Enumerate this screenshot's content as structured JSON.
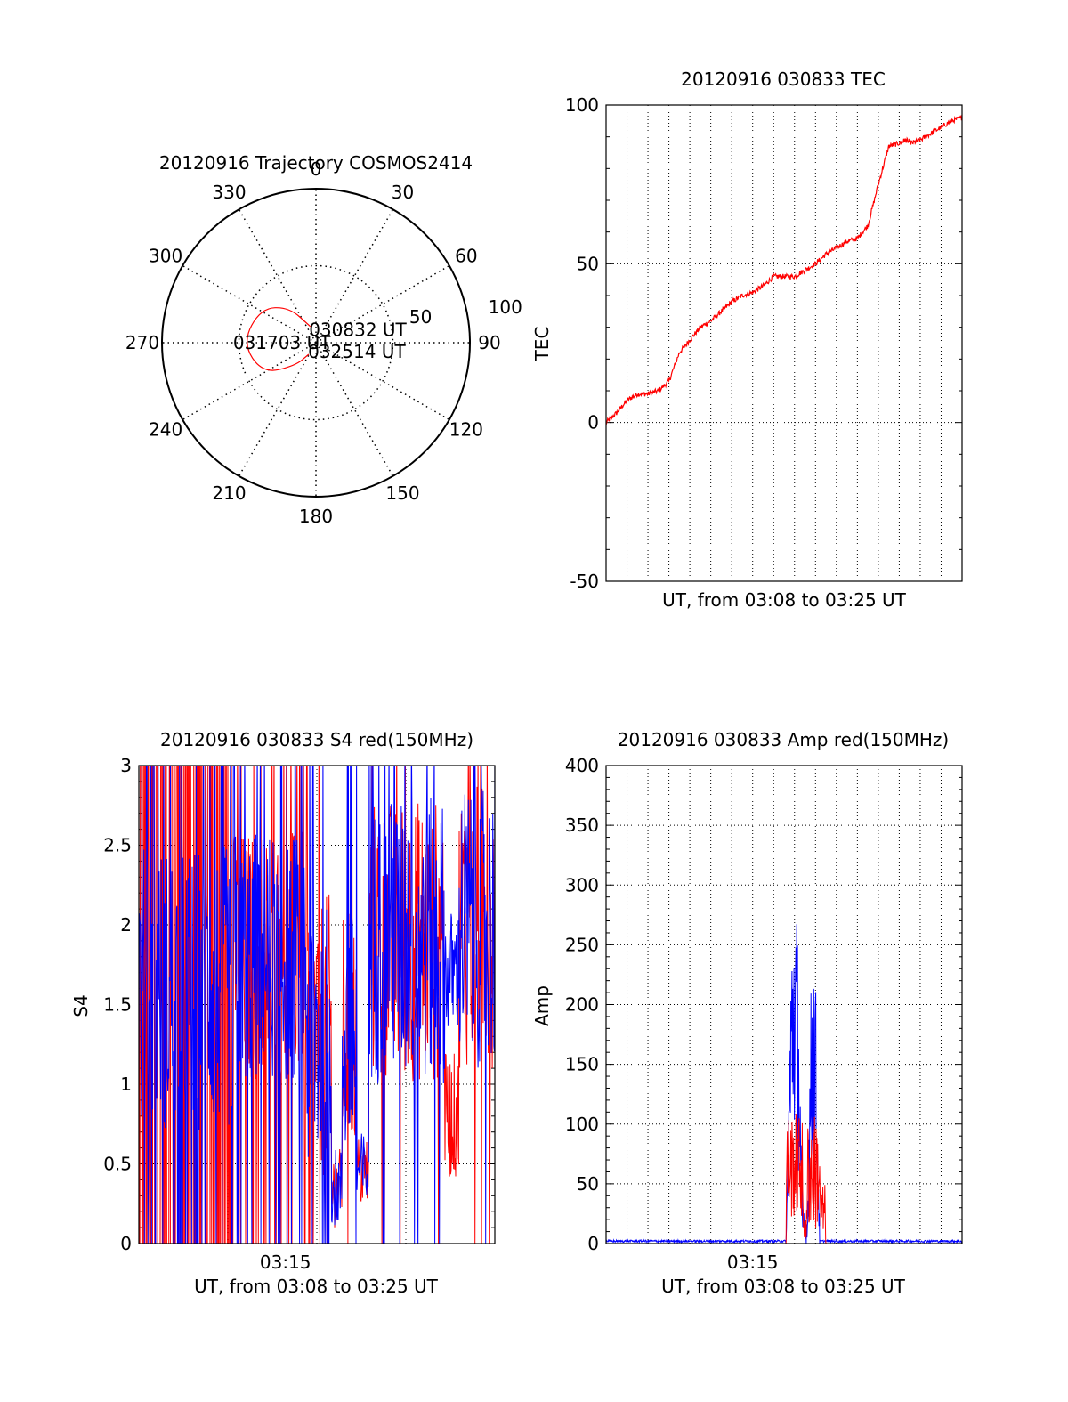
{
  "chart_data": [
    {
      "type": "polar",
      "title": "20120916 Trajectory COSMOS2414",
      "azimuth_labels": [
        "0",
        "30",
        "60",
        "90",
        "120",
        "150",
        "180",
        "210",
        "240",
        "270",
        "300",
        "330"
      ],
      "radial_labels": [
        "50",
        "100"
      ],
      "elevation_max": 90,
      "series": [
        {
          "color": "#ff0000",
          "points": [
            {
              "az": 341,
              "el": 10
            },
            {
              "az": 323,
              "el": 26
            },
            {
              "az": 302,
              "el": 38
            },
            {
              "az": 270,
              "el": 43
            },
            {
              "az": 240,
              "el": 36
            },
            {
              "az": 222,
              "el": 18
            },
            {
              "az": 212,
              "el": 8
            }
          ]
        }
      ],
      "annotations": [
        {
          "text": "030832 UT",
          "az": 341,
          "el": 8
        },
        {
          "text": "031703 UT",
          "az": 270,
          "el": 47
        },
        {
          "text": "032514 UT",
          "az": 212,
          "el": 6
        }
      ]
    },
    {
      "type": "line",
      "title": "20120916 030833 TEC",
      "xlabel": "UT, from 03:08 to 03:25 UT",
      "ylabel": "TEC",
      "ylim": [
        -50,
        100
      ],
      "yticks": [
        "100",
        "50",
        "0",
        "-50"
      ],
      "xlim": [
        0,
        17
      ],
      "grid": true,
      "series": [
        {
          "color": "#ff0000",
          "x": [
            0.0,
            0.5,
            1.0,
            1.5,
            2.0,
            2.5,
            3.0,
            3.5,
            4.0,
            4.5,
            5.0,
            5.5,
            6.0,
            6.5,
            7.0,
            7.5,
            8.0,
            8.5,
            9.0,
            9.5,
            10.0,
            10.5,
            11.0,
            11.5,
            12.0,
            12.5,
            13.0,
            13.5,
            14.0,
            14.3,
            14.6,
            15.0,
            15.5,
            16.0,
            16.5,
            17.0
          ],
          "y": [
            0,
            3,
            7,
            9,
            9,
            10,
            13,
            22,
            26,
            30,
            32,
            35,
            38,
            40,
            41,
            43,
            46,
            46,
            46,
            48,
            50,
            53,
            55,
            57,
            58,
            62,
            75,
            87,
            88,
            89,
            88,
            89,
            91,
            93,
            95,
            96
          ]
        }
      ]
    },
    {
      "type": "line",
      "title": "20120916 030833 S4 red(150MHz)",
      "xlabel": "UT, from 03:08 to 03:25 UT",
      "ylabel": "S4",
      "ylim": [
        0,
        3
      ],
      "yticks": [
        "3",
        "2.5",
        "2",
        "1.5",
        "1",
        "0.5",
        "0"
      ],
      "xlim": [
        0,
        17
      ],
      "xticks": [
        {
          "value": 7,
          "label": "03:15"
        }
      ],
      "grid": true,
      "series": [
        {
          "color": "#ff0000"
        },
        {
          "color": "#0000ff"
        }
      ]
    },
    {
      "type": "line",
      "title": "20120916 030833 Amp red(150MHz)",
      "xlabel": "UT, from 03:08 to 03:25 UT",
      "ylabel": "Amp",
      "ylim": [
        0,
        400
      ],
      "yticks": [
        "400",
        "350",
        "300",
        "250",
        "200",
        "150",
        "100",
        "50",
        "0"
      ],
      "xlim": [
        0,
        17
      ],
      "xticks": [
        {
          "value": 7,
          "label": "03:15"
        }
      ],
      "grid": true,
      "series": [
        {
          "color": "#0000ff"
        },
        {
          "color": "#ff0000"
        }
      ]
    }
  ]
}
